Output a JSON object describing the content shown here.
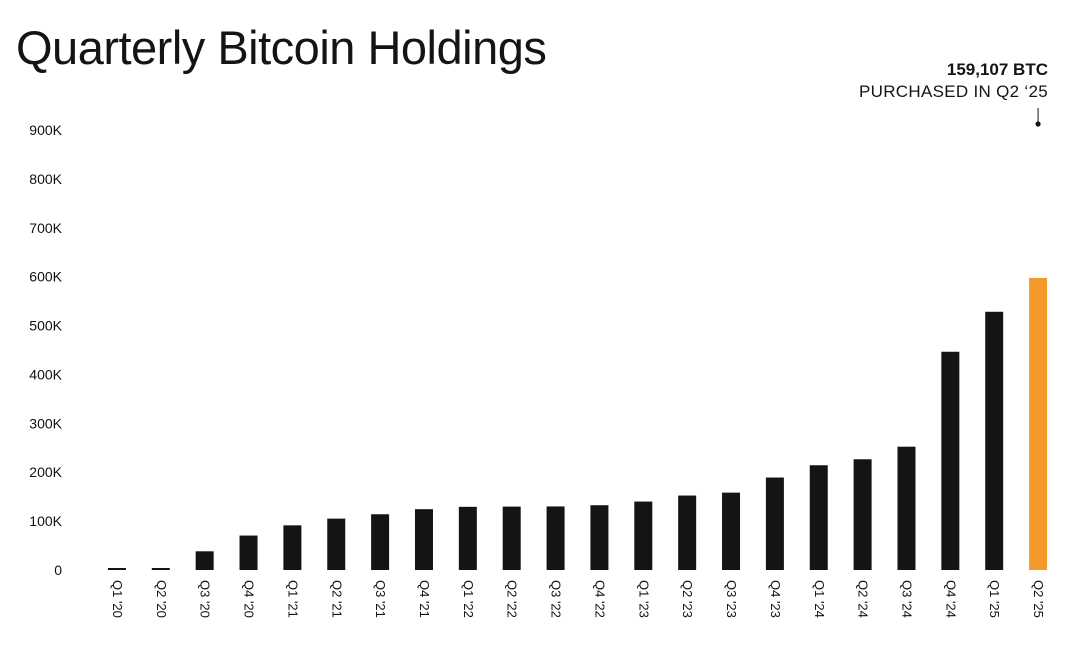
{
  "title": "Quarterly Bitcoin Holdings",
  "annotation": {
    "value": "159,107 BTC",
    "label": "PURCHASED IN Q2 ‘25"
  },
  "colors": {
    "bar": "#141414",
    "highlight": "#f39a2b",
    "text": "#141414"
  },
  "chart_data": {
    "type": "bar",
    "title": "Quarterly Bitcoin Holdings",
    "xlabel": "",
    "ylabel": "",
    "ylim": [
      0,
      900000
    ],
    "grid": false,
    "y_ticks": [
      0,
      100000,
      200000,
      300000,
      400000,
      500000,
      600000,
      700000,
      800000,
      900000
    ],
    "y_tick_labels": [
      "0",
      "100K",
      "200K",
      "300K",
      "400K",
      "500K",
      "600K",
      "700K",
      "800K",
      "900K"
    ],
    "categories": [
      "Q1 '20",
      "Q2 '20",
      "Q3 '20",
      "Q4 '20",
      "Q1 '21",
      "Q2 '21",
      "Q3 '21",
      "Q4 '21",
      "Q1 '22",
      "Q2 '22",
      "Q3 '22",
      "Q4 '22",
      "Q1 '23",
      "Q2 '23",
      "Q3 '23",
      "Q4 '23",
      "Q1 '24",
      "Q2 '24",
      "Q3 '24",
      "Q4 '24",
      "Q1 '25",
      "Q2 '25"
    ],
    "values": [
      0,
      0,
      38250,
      70470,
      91326,
      105085,
      114042,
      124391,
      129218,
      129699,
      130000,
      132500,
      140000,
      152333,
      158245,
      189150,
      214246,
      226500,
      252220,
      446400,
      528185,
      597325
    ],
    "highlight_index": 21
  }
}
